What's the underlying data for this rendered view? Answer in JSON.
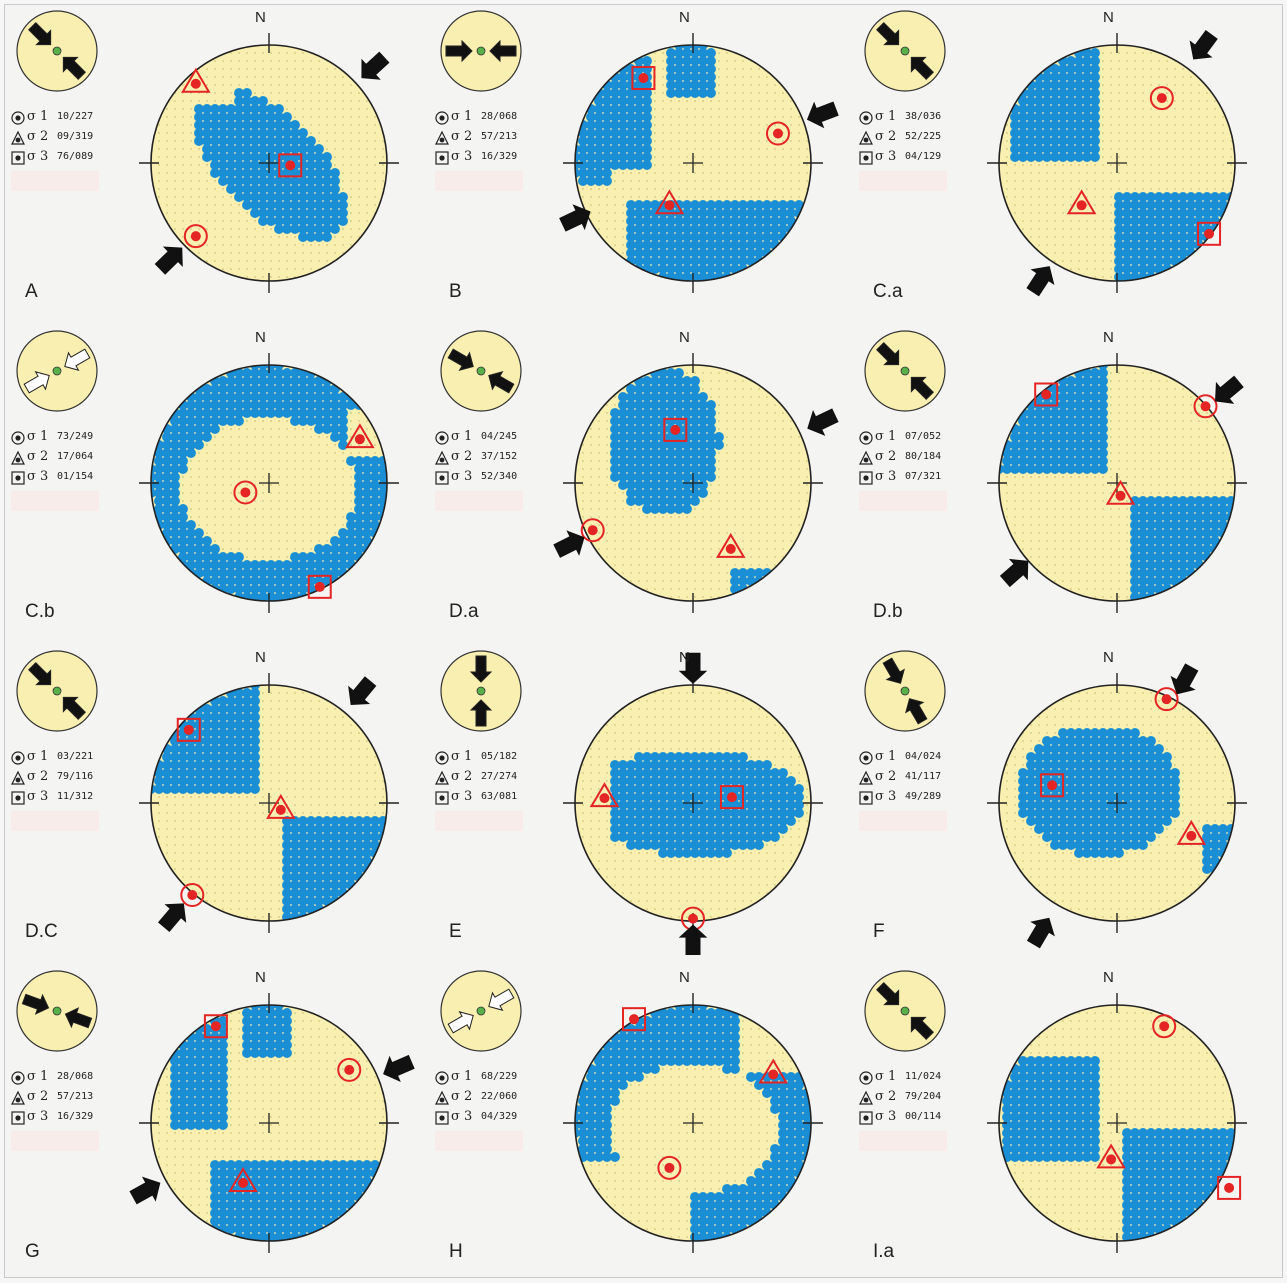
{
  "figure": {
    "north_label": "N",
    "sigma_symbol": "σ",
    "colors": {
      "background_fill": "#f8efb0",
      "density_fill": "#1a8fd6",
      "marker_red": "#e52424",
      "outline": "#222222"
    },
    "panels": [
      {
        "label": "A",
        "sigma1": {
          "name": "1",
          "value": "10/227"
        },
        "sigma2": {
          "name": "2",
          "value": "09/319"
        },
        "sigma3": {
          "name": "3",
          "value": "76/089"
        }
      },
      {
        "label": "B",
        "sigma1": {
          "name": "1",
          "value": "28/068"
        },
        "sigma2": {
          "name": "2",
          "value": "57/213"
        },
        "sigma3": {
          "name": "3",
          "value": "16/329"
        }
      },
      {
        "label": "C.a",
        "sigma1": {
          "name": "1",
          "value": "38/036"
        },
        "sigma2": {
          "name": "2",
          "value": "52/225"
        },
        "sigma3": {
          "name": "3",
          "value": "04/129"
        }
      },
      {
        "label": "C.b",
        "sigma1": {
          "name": "1",
          "value": "73/249"
        },
        "sigma2": {
          "name": "2",
          "value": "17/064"
        },
        "sigma3": {
          "name": "3",
          "value": "01/154"
        }
      },
      {
        "label": "D.a",
        "sigma1": {
          "name": "1",
          "value": "04/245"
        },
        "sigma2": {
          "name": "2",
          "value": "37/152"
        },
        "sigma3": {
          "name": "3",
          "value": "52/340"
        }
      },
      {
        "label": "D.b",
        "sigma1": {
          "name": "1",
          "value": "07/052"
        },
        "sigma2": {
          "name": "2",
          "value": "80/184"
        },
        "sigma3": {
          "name": "3",
          "value": "07/321"
        }
      },
      {
        "label": "D.C",
        "sigma1": {
          "name": "1",
          "value": "03/221"
        },
        "sigma2": {
          "name": "2",
          "value": "79/116"
        },
        "sigma3": {
          "name": "3",
          "value": "11/312"
        }
      },
      {
        "label": "E",
        "sigma1": {
          "name": "1",
          "value": "05/182"
        },
        "sigma2": {
          "name": "2",
          "value": "27/274"
        },
        "sigma3": {
          "name": "3",
          "value": "63/081"
        }
      },
      {
        "label": "F",
        "sigma1": {
          "name": "1",
          "value": "04/024"
        },
        "sigma2": {
          "name": "2",
          "value": "41/117"
        },
        "sigma3": {
          "name": "3",
          "value": "49/289"
        }
      },
      {
        "label": "G",
        "sigma1": {
          "name": "1",
          "value": "28/068"
        },
        "sigma2": {
          "name": "2",
          "value": "57/213"
        },
        "sigma3": {
          "name": "3",
          "value": "16/329"
        }
      },
      {
        "label": "H",
        "sigma1": {
          "name": "1",
          "value": "68/229"
        },
        "sigma2": {
          "name": "2",
          "value": "22/060"
        },
        "sigma3": {
          "name": "3",
          "value": "04/329"
        }
      },
      {
        "label": "I.a",
        "sigma1": {
          "name": "1",
          "value": "11/024"
        },
        "sigma2": {
          "name": "2",
          "value": "79/204"
        },
        "sigma3": {
          "name": "3",
          "value": "00/114"
        }
      }
    ]
  }
}
